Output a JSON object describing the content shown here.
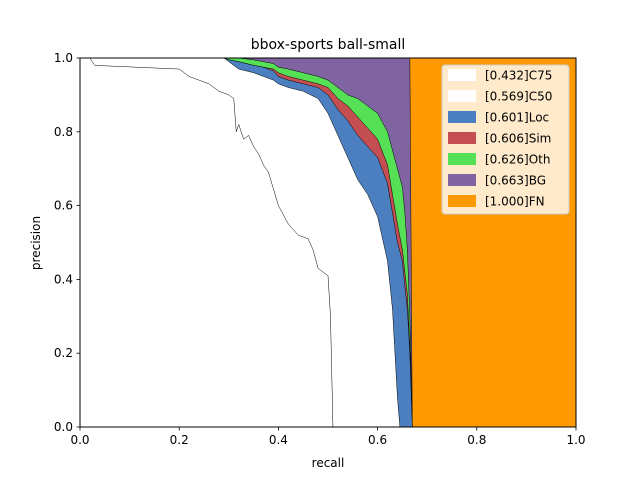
{
  "chart_data": {
    "type": "area",
    "title": "bbox-sports ball-small",
    "xlabel": "recall",
    "ylabel": "precision",
    "xlim": [
      0,
      1
    ],
    "ylim": [
      0,
      1
    ],
    "xticks": [
      "0.0",
      "0.2",
      "0.4",
      "0.6",
      "0.8",
      "1.0"
    ],
    "yticks": [
      "0.0",
      "0.2",
      "0.4",
      "0.6",
      "0.8",
      "1.0"
    ],
    "grid": false,
    "legend_position": "top-right",
    "series": [
      {
        "name": "[0.432]C75",
        "color": "#ffffff",
        "x": [
          0.0,
          0.02,
          0.03,
          0.2,
          0.22,
          0.24,
          0.26,
          0.28,
          0.3,
          0.31,
          0.315,
          0.32,
          0.33,
          0.34,
          0.35,
          0.36,
          0.37,
          0.38,
          0.4,
          0.42,
          0.44,
          0.46,
          0.47,
          0.48,
          0.49,
          0.5,
          0.505,
          0.51
        ],
        "y": [
          1.0,
          1.0,
          0.98,
          0.97,
          0.95,
          0.94,
          0.93,
          0.91,
          0.9,
          0.89,
          0.8,
          0.82,
          0.78,
          0.79,
          0.76,
          0.74,
          0.71,
          0.69,
          0.6,
          0.55,
          0.52,
          0.51,
          0.48,
          0.43,
          0.42,
          0.41,
          0.3,
          0.0
        ]
      },
      {
        "name": "[0.569]C50",
        "color": "#ffffff",
        "x": [
          0.0,
          0.29,
          0.3,
          0.32,
          0.35,
          0.37,
          0.39,
          0.4,
          0.42,
          0.45,
          0.48,
          0.5,
          0.52,
          0.54,
          0.56,
          0.58,
          0.6,
          0.62,
          0.63,
          0.635,
          0.64,
          0.645,
          0.65
        ],
        "y": [
          1.0,
          1.0,
          0.99,
          0.97,
          0.96,
          0.95,
          0.94,
          0.93,
          0.92,
          0.91,
          0.89,
          0.85,
          0.79,
          0.73,
          0.67,
          0.63,
          0.57,
          0.45,
          0.32,
          0.2,
          0.08,
          0.0,
          0.0
        ]
      },
      {
        "name": "[0.601]Loc",
        "color": "#4c7fbf",
        "x": [
          0.0,
          0.29,
          0.3,
          0.32,
          0.35,
          0.37,
          0.39,
          0.4,
          0.42,
          0.45,
          0.48,
          0.5,
          0.52,
          0.54,
          0.56,
          0.58,
          0.6,
          0.62,
          0.63,
          0.64,
          0.65,
          0.655,
          0.66,
          0.665,
          0.67
        ],
        "y": [
          1.0,
          1.0,
          0.995,
          0.99,
          0.98,
          0.975,
          0.965,
          0.95,
          0.94,
          0.93,
          0.92,
          0.9,
          0.86,
          0.83,
          0.79,
          0.76,
          0.73,
          0.66,
          0.58,
          0.5,
          0.45,
          0.38,
          0.32,
          0.2,
          0.0
        ]
      },
      {
        "name": "[0.606]Sim",
        "color": "#c44e52",
        "x": [
          0.0,
          0.29,
          0.3,
          0.32,
          0.35,
          0.37,
          0.39,
          0.4,
          0.42,
          0.45,
          0.48,
          0.5,
          0.52,
          0.54,
          0.56,
          0.58,
          0.6,
          0.62,
          0.63,
          0.64,
          0.65,
          0.655,
          0.66,
          0.665,
          0.67
        ],
        "y": [
          1.0,
          1.0,
          0.995,
          0.99,
          0.98,
          0.975,
          0.97,
          0.96,
          0.95,
          0.94,
          0.93,
          0.92,
          0.89,
          0.87,
          0.84,
          0.81,
          0.78,
          0.71,
          0.63,
          0.55,
          0.48,
          0.42,
          0.36,
          0.22,
          0.0
        ]
      },
      {
        "name": "[0.626]Oth",
        "color": "#55e055",
        "x": [
          0.0,
          0.29,
          0.3,
          0.32,
          0.35,
          0.37,
          0.39,
          0.4,
          0.42,
          0.45,
          0.48,
          0.5,
          0.52,
          0.54,
          0.56,
          0.58,
          0.6,
          0.62,
          0.63,
          0.64,
          0.65,
          0.655,
          0.66,
          0.665,
          0.67
        ],
        "y": [
          1.0,
          1.0,
          1.0,
          1.0,
          0.995,
          0.99,
          0.985,
          0.975,
          0.97,
          0.96,
          0.95,
          0.94,
          0.92,
          0.9,
          0.89,
          0.87,
          0.85,
          0.8,
          0.75,
          0.7,
          0.65,
          0.58,
          0.48,
          0.3,
          0.0
        ]
      },
      {
        "name": "[0.663]BG",
        "color": "#8064a2",
        "x": [
          0.0,
          0.66,
          0.665,
          0.67
        ],
        "y": [
          1.0,
          1.0,
          1.0,
          0.0
        ]
      },
      {
        "name": "[1.000]FN",
        "color": "#ff9900",
        "x": [
          0.0,
          1.0
        ],
        "y": [
          1.0,
          1.0
        ]
      }
    ]
  }
}
